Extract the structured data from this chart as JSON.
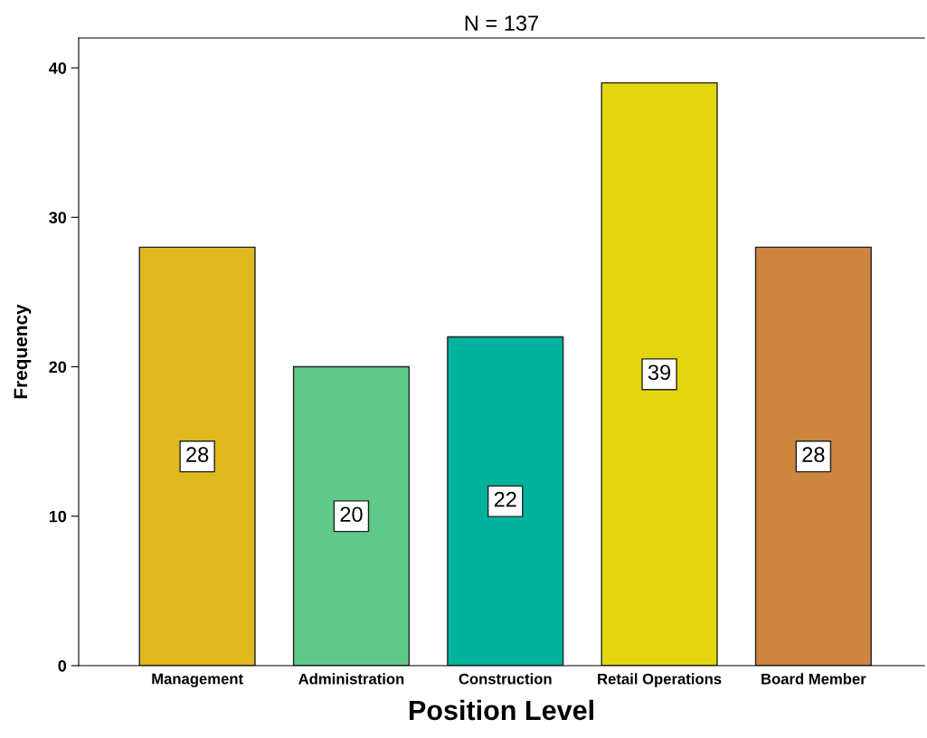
{
  "chart_data": {
    "type": "bar",
    "title": "N = 137",
    "xlabel": "Position Level",
    "ylabel": "Frequency",
    "categories": [
      "Management",
      "Administration",
      "Construction",
      "Retail Operations",
      "Board Member"
    ],
    "values": [
      28,
      20,
      22,
      39,
      28
    ],
    "colors": [
      "#e0b820",
      "#5fc98a",
      "#00b39c",
      "#e3d60e",
      "#cc8640"
    ],
    "ylim": [
      0,
      42
    ],
    "yticks": [
      0,
      10,
      20,
      30,
      40
    ],
    "grid": false,
    "data_labels": true
  }
}
